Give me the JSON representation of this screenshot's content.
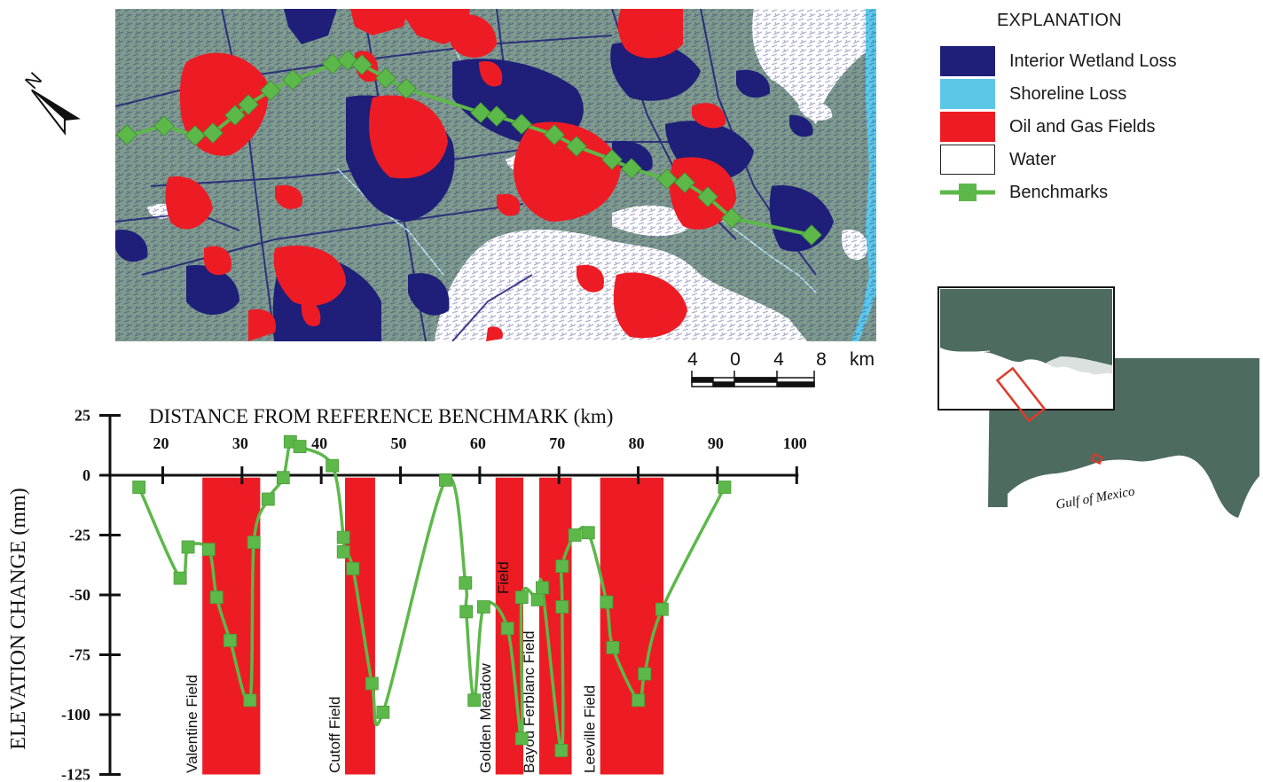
{
  "legend": {
    "title": "EXPLANATION",
    "items": [
      {
        "label": "Interior Wetland Loss",
        "color": "#1f1f7a",
        "kind": "box"
      },
      {
        "label": "Shoreline Loss",
        "color": "#5bc8e8",
        "kind": "box"
      },
      {
        "label": "Oil and Gas Fields",
        "color": "#ed1c24",
        "kind": "box"
      },
      {
        "label": "Water",
        "color": "#ffffff",
        "kind": "box"
      },
      {
        "label": "Benchmarks",
        "color": "#5db84a",
        "kind": "line"
      }
    ]
  },
  "scale_bar": {
    "labels": [
      "4",
      "0",
      "4",
      "8"
    ],
    "unit": "km"
  },
  "inset": {
    "water_label": "Gulf of Mexico"
  },
  "colors": {
    "land": "#7e9a8c",
    "inset_land": "#4d6b5e",
    "wetland_loss": "#1f1f7a",
    "shoreline_loss": "#5bc8e8",
    "oil_gas": "#ed1c24",
    "benchmark": "#5db84a",
    "locator_box": "#e03a2a"
  },
  "chart_data": {
    "type": "line",
    "title": "DISTANCE FROM REFERENCE BENCHMARK (km)",
    "xlabel": "DISTANCE FROM REFERENCE BENCHMARK (km)",
    "ylabel": "ELEVATION CHANGE (mm)",
    "xlim": [
      12,
      100
    ],
    "ylim": [
      -125,
      25
    ],
    "xticks": [
      20,
      30,
      40,
      50,
      60,
      70,
      80,
      90,
      100
    ],
    "yticks": [
      25,
      0,
      -25,
      -50,
      -75,
      -100,
      -125
    ],
    "fields": [
      {
        "name": "Valentine Field",
        "x_start": 25.0,
        "x_end": 32.3
      },
      {
        "name": "Cutoff Field",
        "x_start": 43.0,
        "x_end": 46.8
      },
      {
        "name": "Golden Meadow Field",
        "x_start": 62.0,
        "x_end": 65.5
      },
      {
        "name": "Bayou Ferblanc Field",
        "x_start": 67.5,
        "x_end": 71.6
      },
      {
        "name": "Leeville Field",
        "x_start": 75.2,
        "x_end": 83.2
      }
    ],
    "series": [
      {
        "x": [
          17.0,
          22.2,
          23.2,
          25.8,
          26.8,
          28.5,
          31.0,
          31.5,
          33.3,
          35.2,
          36.1,
          37.3,
          41.4,
          42.8,
          42.8,
          44.0,
          46.4,
          47.8,
          55.7,
          58.2,
          58.3,
          59.3,
          60.5,
          63.5,
          65.3,
          65.3,
          67.3,
          67.9,
          70.3,
          70.4,
          70.4,
          72.0,
          73.7,
          76.0,
          76.8,
          80.0,
          80.8,
          83.0,
          90.9
        ],
        "y": [
          -5,
          -43,
          -30,
          -31,
          -51,
          -69,
          -94,
          -28,
          -10,
          -1,
          14,
          12,
          4,
          -26,
          -32,
          -39,
          -87,
          -99,
          -2,
          -45,
          -57,
          -94,
          -55,
          -64,
          -110,
          -51,
          -52,
          -47,
          -115,
          -55,
          -38,
          -25,
          -24,
          -53,
          -72,
          -94,
          -83,
          -56,
          -5
        ]
      }
    ]
  }
}
